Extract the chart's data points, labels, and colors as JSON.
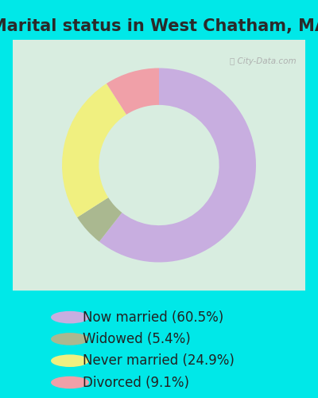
{
  "title": "Marital status in West Chatham, MA",
  "categories": [
    "Now married (60.5%)",
    "Widowed (5.4%)",
    "Never married (24.9%)",
    "Divorced (9.1%)"
  ],
  "values": [
    60.5,
    5.4,
    24.9,
    9.1
  ],
  "colors": [
    "#c8aee0",
    "#aab890",
    "#f0f080",
    "#f0a0a8"
  ],
  "background_color_outer": "#00e8e8",
  "background_color_inner": "#d8ede0",
  "donut_width": 0.38,
  "watermark": "City-Data.com",
  "title_fontsize": 15,
  "legend_fontsize": 12,
  "title_color": "#2a2a2a",
  "legend_text_color": "#222222"
}
